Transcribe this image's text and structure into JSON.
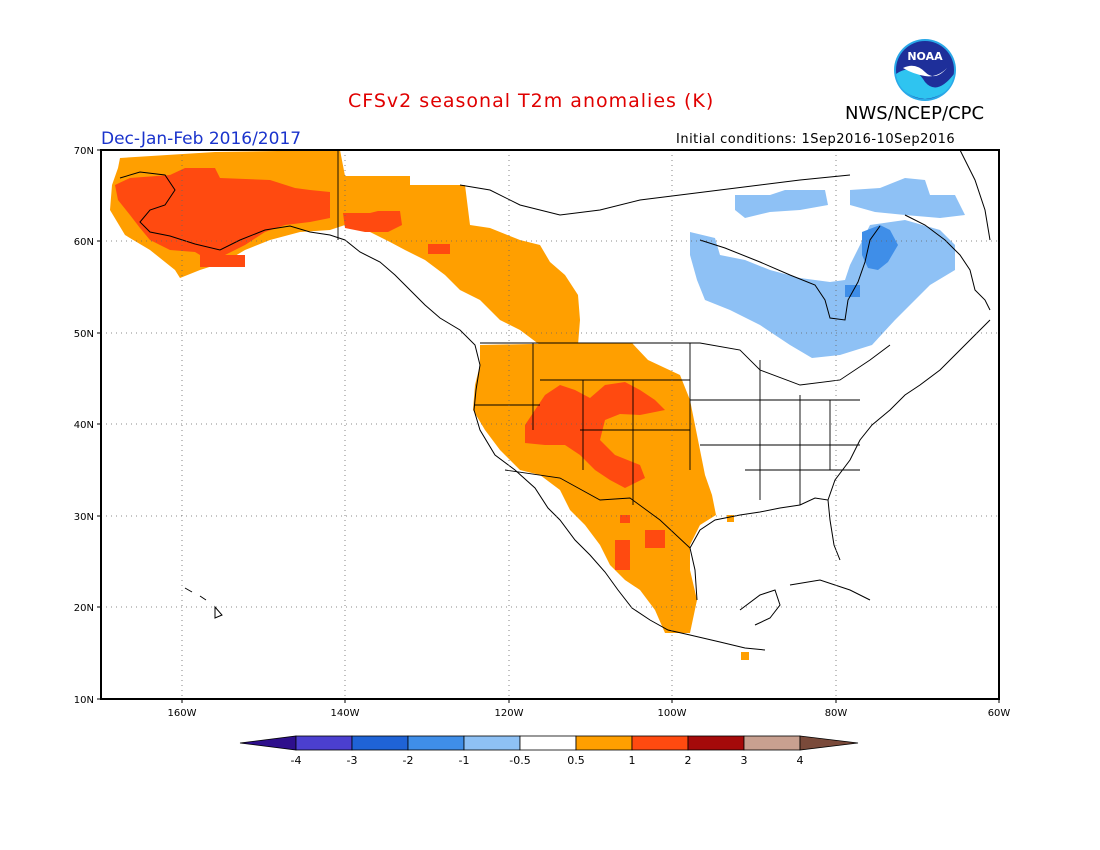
{
  "header": {
    "title": "CFSv2 seasonal T2m anomalies (K)",
    "agency": "NWS/NCEP/CPC",
    "season": "Dec-Jan-Feb 2016/2017",
    "initial_conditions": "Initial conditions: 1Sep2016-10Sep2016",
    "logo_text": "NOAA"
  },
  "map": {
    "projection": "lat-lon",
    "lon_range": [
      -170,
      -60
    ],
    "lat_range": [
      10,
      70
    ],
    "grid": "dotted",
    "lat_labels": [
      "70N",
      "60N",
      "50N",
      "40N",
      "30N",
      "20N",
      "10N"
    ],
    "lon_labels": [
      "160W",
      "140W",
      "120W",
      "100W",
      "80W",
      "60W"
    ],
    "anomaly_regions": [
      {
        "region": "Alaska",
        "category": "1 to 2"
      },
      {
        "region": "Yukon / British Columbia / Pacific Northwest",
        "category": "0.5 to 1"
      },
      {
        "region": "Western and Southwestern US",
        "category": "0.5 to 1"
      },
      {
        "region": "Four Corners / Colorado Plateau",
        "category": "1 to 2"
      },
      {
        "region": "Mexico",
        "category": "0.5 to 1"
      },
      {
        "region": "Hudson Bay / Quebec / Labrador",
        "category": "-1 to -0.5"
      },
      {
        "region": "Eastern Quebec",
        "category": "-2 to -1"
      }
    ]
  },
  "colorbar": {
    "labels": [
      "-4",
      "-3",
      "-2",
      "-1",
      "-0.5",
      "0.5",
      "1",
      "2",
      "3",
      "4"
    ],
    "colors": [
      "#2e0f8c",
      "#4b3fcf",
      "#1f63d6",
      "#3f8ee8",
      "#8ec1f5",
      "#ffffff",
      "#ff9f00",
      "#ff4a10",
      "#a50a0a",
      "#c8a090",
      "#7a4a3a"
    ]
  },
  "colors": {
    "orange": "#ff9f00",
    "red_orange": "#ff4a10",
    "light_blue": "#8ec1f5",
    "mid_blue": "#3f8ee8",
    "title_red": "#e00000",
    "season_blue": "#1a33cc"
  }
}
